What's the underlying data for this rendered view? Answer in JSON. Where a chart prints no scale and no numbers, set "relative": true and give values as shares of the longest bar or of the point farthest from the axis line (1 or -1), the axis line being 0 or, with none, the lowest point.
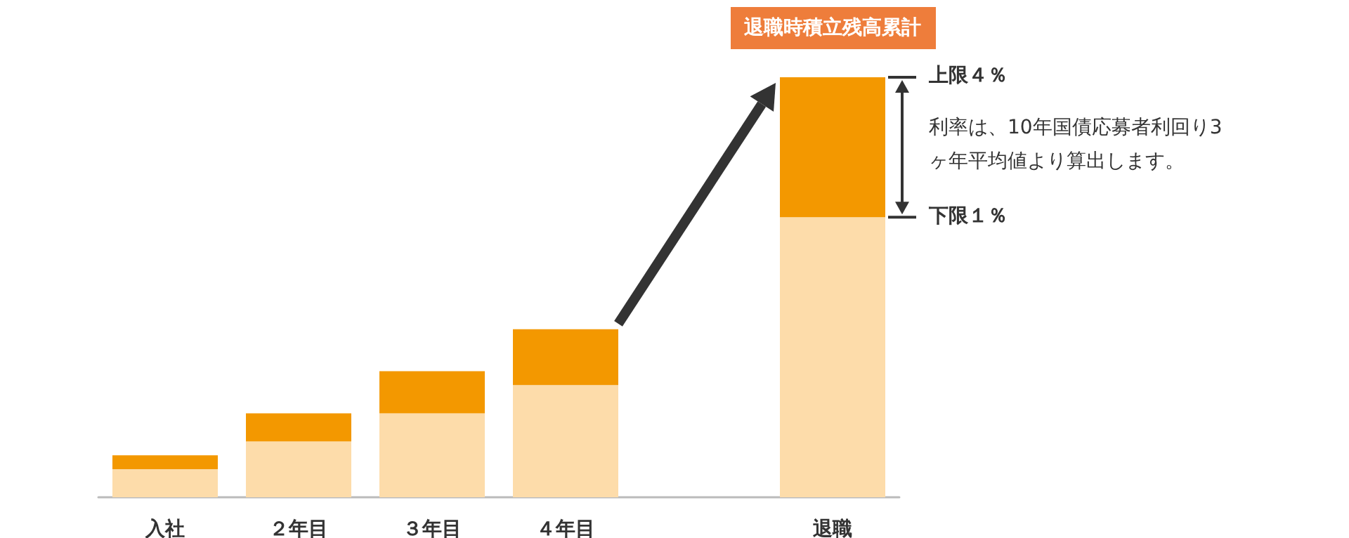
{
  "chart_data": {
    "type": "bar",
    "stacked": true,
    "relative": true,
    "categories": [
      "入社",
      "２年目",
      "３年目",
      "４年目",
      null,
      "退職"
    ],
    "series": [
      {
        "color": "#fddcaa",
        "values": [
          0.067,
          0.133,
          0.2,
          0.267,
          null,
          0.667
        ]
      },
      {
        "color": "#f39800",
        "values": [
          0.033,
          0.067,
          0.1,
          0.133,
          null,
          0.333
        ]
      }
    ],
    "annotations": [
      "退職時積立残高累計",
      "上限４％",
      "利率は、10年国債応募者利回り3ヶ年平均値より算出します。",
      "下限１％"
    ]
  }
}
